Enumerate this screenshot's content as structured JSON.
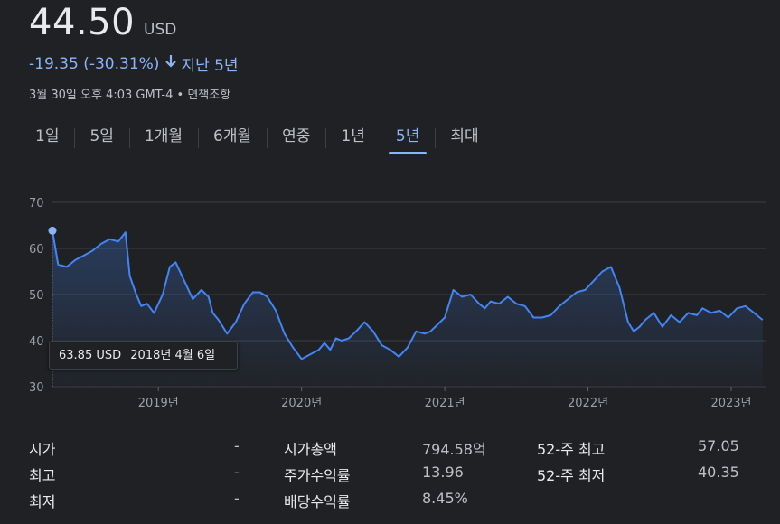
{
  "quote": {
    "price": "44.50",
    "currency": "USD",
    "change": "-19.35 (-30.31%)",
    "period": "지난 5년",
    "timestamp": "3월 30일 오후 4:03 GMT-4",
    "disclaimer": "면책조항",
    "accent_color": "#8ab4f8",
    "line_color": "#4285f4"
  },
  "tabs": [
    {
      "label": "1일"
    },
    {
      "label": "5일"
    },
    {
      "label": "1개월"
    },
    {
      "label": "6개월"
    },
    {
      "label": "연중"
    },
    {
      "label": "1년"
    },
    {
      "label": "5년",
      "active": true
    },
    {
      "label": "최대"
    }
  ],
  "tooltip": {
    "price": "63.85 USD",
    "date": "2018년 4월 6일"
  },
  "chart_data": {
    "type": "area",
    "ylim": [
      30,
      70
    ],
    "y_ticks": [
      30,
      40,
      50,
      60,
      70
    ],
    "x_ticks": [
      "2019년",
      "2020년",
      "2021년",
      "2022년",
      "2023년"
    ],
    "x_tick_dates": [
      2019.0,
      2020.0,
      2021.0,
      2022.0,
      2023.0
    ],
    "xlim": [
      2018.26,
      2023.24
    ],
    "grid": true,
    "x": [
      2018.26,
      2018.3,
      2018.36,
      2018.42,
      2018.48,
      2018.54,
      2018.6,
      2018.66,
      2018.72,
      2018.77,
      2018.8,
      2018.84,
      2018.88,
      2018.92,
      2018.97,
      2019.03,
      2019.08,
      2019.12,
      2019.18,
      2019.24,
      2019.3,
      2019.35,
      2019.38,
      2019.42,
      2019.48,
      2019.54,
      2019.6,
      2019.66,
      2019.71,
      2019.76,
      2019.82,
      2019.88,
      2019.94,
      2020.0,
      2020.06,
      2020.12,
      2020.16,
      2020.2,
      2020.24,
      2020.28,
      2020.33,
      2020.38,
      2020.44,
      2020.5,
      2020.56,
      2020.62,
      2020.68,
      2020.74,
      2020.8,
      2020.86,
      2020.9,
      2020.95,
      2021.0,
      2021.06,
      2021.12,
      2021.18,
      2021.24,
      2021.28,
      2021.32,
      2021.38,
      2021.44,
      2021.5,
      2021.56,
      2021.62,
      2021.68,
      2021.74,
      2021.8,
      2021.86,
      2021.92,
      2021.98,
      2022.04,
      2022.1,
      2022.16,
      2022.22,
      2022.28,
      2022.32,
      2022.36,
      2022.4,
      2022.46,
      2022.52,
      2022.58,
      2022.64,
      2022.7,
      2022.76,
      2022.8,
      2022.86,
      2022.92,
      2022.98,
      2023.04,
      2023.1,
      2023.16,
      2023.22
    ],
    "y": [
      63.85,
      56.5,
      56.0,
      57.5,
      58.5,
      59.5,
      61.0,
      62.0,
      61.5,
      63.5,
      54.0,
      50.5,
      47.5,
      48.0,
      46.0,
      50.0,
      56.0,
      57.0,
      53.0,
      49.0,
      51.0,
      49.5,
      46.0,
      44.5,
      41.5,
      44.0,
      48.0,
      50.5,
      50.5,
      49.5,
      46.5,
      41.5,
      38.5,
      36.0,
      37.0,
      38.0,
      39.5,
      38.0,
      40.5,
      40.0,
      40.5,
      42.0,
      44.0,
      42.0,
      39.0,
      38.0,
      36.5,
      38.5,
      42.0,
      41.5,
      42.0,
      43.5,
      45.0,
      51.0,
      49.5,
      50.0,
      48.0,
      47.0,
      48.5,
      48.0,
      49.5,
      48.0,
      47.5,
      45.0,
      45.0,
      45.5,
      47.5,
      49.0,
      50.5,
      51.0,
      53.0,
      55.0,
      56.0,
      51.5,
      44.0,
      42.0,
      43.0,
      44.5,
      46.0,
      43.0,
      45.5,
      44.0,
      46.0,
      45.5,
      47.0,
      46.0,
      46.5,
      45.0,
      47.0,
      47.5,
      46.0,
      44.5
    ]
  },
  "stats": {
    "col1": [
      {
        "label": "시가",
        "value": "-"
      },
      {
        "label": "최고",
        "value": "-"
      },
      {
        "label": "최저",
        "value": "-"
      }
    ],
    "col2": [
      {
        "label": "시가총액",
        "value": "794.58억"
      },
      {
        "label": "주가수익률",
        "value": "13.96"
      },
      {
        "label": "배당수익률",
        "value": "8.45%"
      }
    ],
    "col3": [
      {
        "label": "52-주 최고",
        "value": "57.05"
      },
      {
        "label": "52-주 최저",
        "value": "40.35"
      }
    ]
  }
}
